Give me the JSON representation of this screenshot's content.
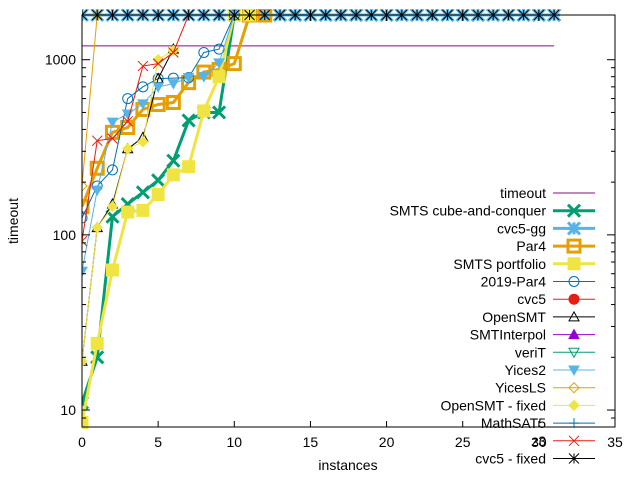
{
  "chart_data": {
    "type": "line",
    "title": "",
    "xlabel": "instances",
    "ylabel": "timeout",
    "xlim": [
      0,
      35
    ],
    "ylim": [
      8,
      1800
    ],
    "yscale": "log",
    "xticks": [
      0,
      5,
      10,
      15,
      20,
      25,
      30,
      35
    ],
    "xtick_labels": [
      "0",
      "5",
      "10",
      "15",
      "20",
      "25",
      "30",
      "35"
    ],
    "yticks": [
      10,
      100,
      1000
    ],
    "ytick_labels": [
      "10",
      "100",
      "1000"
    ],
    "grid": false,
    "legend_position": "right",
    "series": [
      {
        "name": "timeout",
        "color": "#8b0a8b",
        "width": 1,
        "marker": "none",
        "x": [
          0,
          31
        ],
        "y": [
          1200,
          1200
        ]
      },
      {
        "name": "SMTS cube-and-conquer",
        "color": "#009e73",
        "width": 3,
        "marker": "x",
        "x": [
          0,
          1,
          2,
          3,
          4,
          5,
          6,
          7,
          8,
          9,
          10,
          11,
          12,
          13,
          14,
          15,
          16,
          17,
          18,
          19,
          20,
          21,
          22,
          23,
          24,
          25,
          26,
          27,
          28,
          29,
          30,
          31
        ],
        "y": [
          11,
          20,
          127,
          150,
          175,
          205,
          265,
          450,
          500,
          500,
          1800,
          1800,
          1800,
          1800,
          1800,
          1800,
          1800,
          1800,
          1800,
          1800,
          1800,
          1800,
          1800,
          1800,
          1800,
          1800,
          1800,
          1800,
          1800,
          1800,
          1800,
          1800
        ]
      },
      {
        "name": "cvc5-gg",
        "color": "#56b4e9",
        "width": 3,
        "marker": "star",
        "x": [
          0,
          1,
          2,
          3,
          4,
          5,
          6,
          7,
          8,
          9,
          10,
          11,
          12,
          13,
          14,
          15,
          16,
          17,
          18,
          19,
          20,
          21,
          22,
          23,
          24,
          25,
          26,
          27,
          28,
          29,
          30,
          31
        ],
        "y": [
          1800,
          1800,
          1800,
          1800,
          1800,
          1800,
          1800,
          1800,
          1800,
          1800,
          1800,
          1800,
          1800,
          1800,
          1800,
          1800,
          1800,
          1800,
          1800,
          1800,
          1800,
          1800,
          1800,
          1800,
          1800,
          1800,
          1800,
          1800,
          1800,
          1800,
          1800,
          1800
        ]
      },
      {
        "name": "Par4",
        "color": "#e69f00",
        "width": 3,
        "marker": "square",
        "x": [
          0,
          1,
          2,
          3,
          4,
          5,
          6,
          7,
          8,
          9,
          10,
          11,
          12
        ],
        "y": [
          145,
          240,
          385,
          410,
          520,
          555,
          570,
          740,
          850,
          880,
          950,
          1800,
          1800
        ]
      },
      {
        "name": "SMTS portfolio",
        "color": "#f0e442",
        "width": 3,
        "marker": "filled-square",
        "x": [
          0,
          1,
          2,
          3,
          4,
          5,
          6,
          7,
          8,
          9,
          10,
          11
        ],
        "y": [
          8.5,
          24,
          63,
          135,
          138,
          170,
          220,
          245,
          510,
          800,
          1800,
          1800
        ]
      },
      {
        "name": "2019-Par4",
        "color": "#0072b2",
        "width": 1,
        "marker": "circle",
        "x": [
          0,
          1,
          2,
          3,
          4,
          5,
          6,
          7,
          8,
          9,
          10
        ],
        "y": [
          125,
          190,
          235,
          600,
          700,
          780,
          785,
          790,
          1100,
          1150,
          1800
        ]
      },
      {
        "name": "cvc5",
        "color": "#e51e10",
        "width": 1,
        "marker": "filled-circle",
        "x": [],
        "y": []
      },
      {
        "name": "OpenSMT",
        "color": "#000000",
        "width": 1,
        "marker": "triangle",
        "x": [
          0,
          1,
          2,
          3,
          4,
          5,
          6
        ],
        "y": [
          19,
          110,
          150,
          310,
          360,
          780,
          1150
        ]
      },
      {
        "name": "SMTInterpol",
        "color": "#9400d3",
        "width": 1,
        "marker": "filled-triangle",
        "x": [],
        "y": []
      },
      {
        "name": "veriT",
        "color": "#009e73",
        "width": 1,
        "marker": "triangle-down",
        "x": [],
        "y": []
      },
      {
        "name": "Yices2",
        "color": "#56b4e9",
        "width": 1,
        "marker": "filled-triangle-down",
        "x": [
          0,
          1,
          2,
          3,
          4,
          5,
          6,
          7,
          8,
          9,
          10
        ],
        "y": [
          62,
          180,
          440,
          490,
          560,
          700,
          730,
          790,
          800,
          960,
          1800
        ]
      },
      {
        "name": "YicesLS",
        "color": "#e69f00",
        "width": 1,
        "marker": "diamond",
        "x": [
          0,
          1
        ],
        "y": [
          190,
          1800
        ]
      },
      {
        "name": "OpenSMT - fixed",
        "color": "#f0e442",
        "width": 1,
        "marker": "filled-diamond",
        "x": [
          0,
          1,
          2,
          3,
          4,
          5,
          6
        ],
        "y": [
          19,
          110,
          145,
          310,
          340,
          1000,
          1130
        ]
      },
      {
        "name": "MathSAT5",
        "color": "#0072b2",
        "width": 1,
        "marker": "plus",
        "x": [],
        "y": []
      },
      {
        "name": "z3",
        "color": "#e51e10",
        "width": 1,
        "marker": "x",
        "x": [
          0,
          1,
          2,
          3,
          4,
          5,
          6,
          7
        ],
        "y": [
          92,
          345,
          355,
          445,
          920,
          950,
          1100,
          1800
        ]
      },
      {
        "name": "cvc5 - fixed",
        "color": "#000000",
        "width": 1,
        "marker": "star",
        "x": [
          0,
          1,
          2,
          3,
          4,
          5,
          6,
          7,
          8,
          9,
          10,
          11,
          12,
          13,
          14,
          15,
          16,
          17,
          18,
          19,
          20,
          21,
          22,
          23,
          24,
          25,
          26,
          27,
          28,
          29,
          30,
          31
        ],
        "y": [
          1800,
          1800,
          1800,
          1800,
          1800,
          1800,
          1800,
          1800,
          1800,
          1800,
          1800,
          1800,
          1800,
          1800,
          1800,
          1800,
          1800,
          1800,
          1800,
          1800,
          1800,
          1800,
          1800,
          1800,
          1800,
          1800,
          1800,
          1800,
          1800,
          1800,
          1800,
          1800
        ]
      }
    ]
  }
}
